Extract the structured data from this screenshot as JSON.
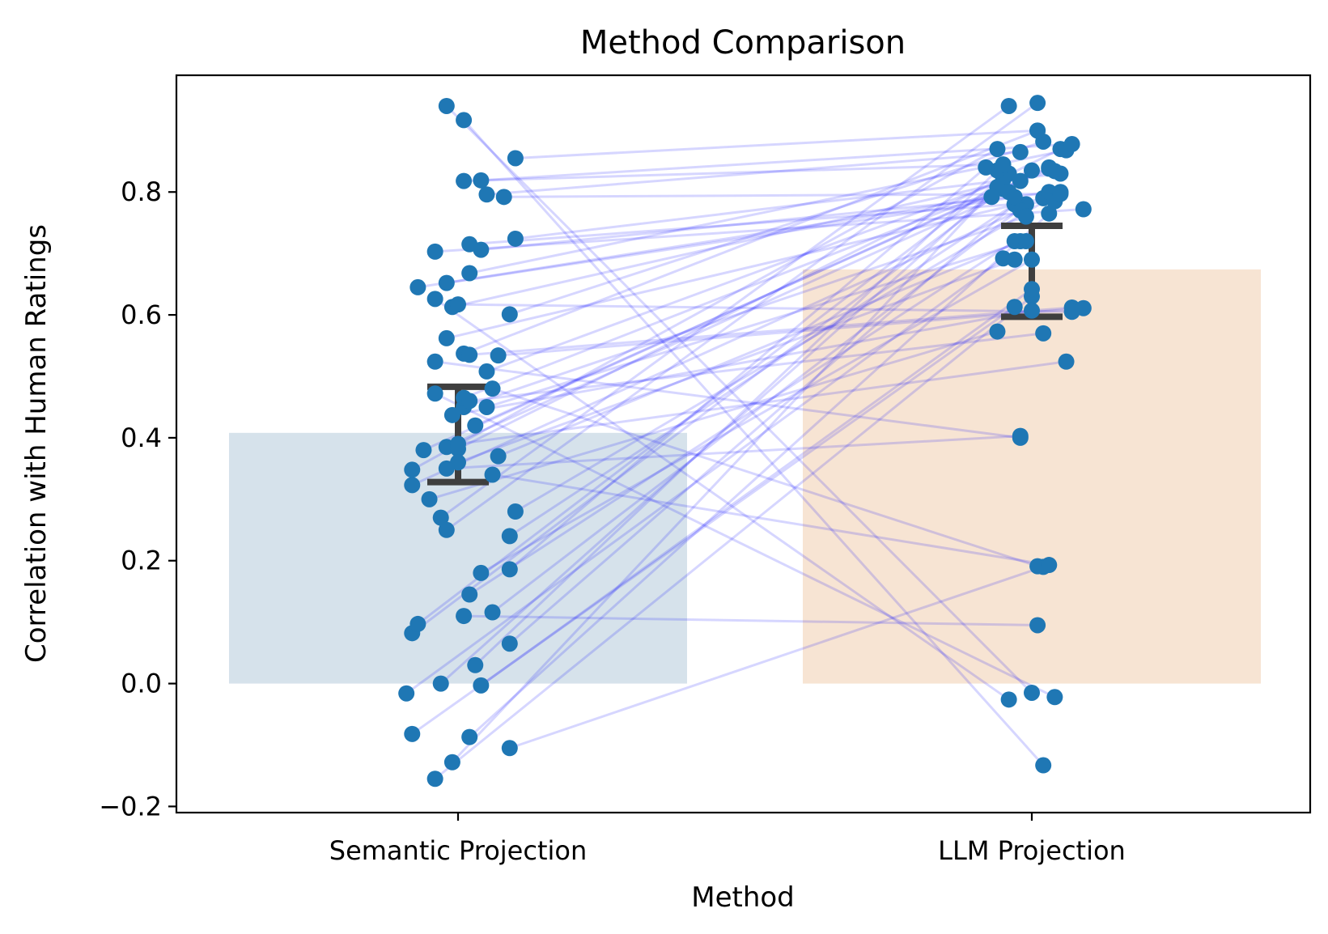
{
  "chart_data": {
    "type": "bar",
    "title": "Method Comparison",
    "xlabel": "Method",
    "ylabel": "Correlation with Human Ratings",
    "categories": [
      "Semantic Projection",
      "LLM Projection"
    ],
    "values": [
      0.408,
      0.674
    ],
    "ylim": [
      -0.21,
      0.99
    ],
    "yticks": [
      -0.2,
      0.0,
      0.2,
      0.4,
      0.6,
      0.8
    ],
    "ytick_labels": [
      "−0.2",
      "0.0",
      "0.2",
      "0.4",
      "0.6",
      "0.8"
    ],
    "error_bars": [
      {
        "low": 0.328,
        "high": 0.483
      },
      {
        "low": 0.597,
        "high": 0.745
      }
    ],
    "grid": false,
    "legend": "none",
    "paired_points": [
      {
        "x": [
          -0.08,
          -0.05
        ],
        "y": [
          0.082,
          0.805
        ]
      },
      {
        "x": [
          -0.07,
          -0.04
        ],
        "y": [
          0.097,
          0.83
        ]
      },
      {
        "x": [
          -0.09,
          -0.05
        ],
        "y": [
          -0.016,
          0.692
        ]
      },
      {
        "x": [
          -0.08,
          -0.03
        ],
        "y": [
          -0.082,
          0.613
        ]
      },
      {
        "x": [
          -0.04,
          0.0
        ],
        "y": [
          -0.155,
          0.63
        ]
      },
      {
        "x": [
          -0.01,
          -0.05
        ],
        "y": [
          -0.128,
          0.82
        ]
      },
      {
        "x": [
          0.02,
          0.03
        ],
        "y": [
          -0.087,
          0.765
        ]
      },
      {
        "x": [
          0.09,
          0.02
        ],
        "y": [
          -0.105,
          0.19
        ]
      },
      {
        "x": [
          -0.03,
          -0.06
        ],
        "y": [
          0.0,
          0.808
        ]
      },
      {
        "x": [
          0.04,
          0.0
        ],
        "y": [
          -0.003,
          0.642
        ]
      },
      {
        "x": [
          0.03,
          -0.06
        ],
        "y": [
          0.03,
          0.835
        ]
      },
      {
        "x": [
          0.09,
          -0.03
        ],
        "y": [
          0.065,
          0.78
        ]
      },
      {
        "x": [
          0.01,
          0.01
        ],
        "y": [
          0.11,
          0.095
        ]
      },
      {
        "x": [
          0.06,
          -0.01
        ],
        "y": [
          0.116,
          0.78
        ]
      },
      {
        "x": [
          0.02,
          -0.03
        ],
        "y": [
          0.145,
          0.72
        ]
      },
      {
        "x": [
          0.04,
          0.0
        ],
        "y": [
          0.18,
          0.69
        ]
      },
      {
        "x": [
          0.09,
          -0.08
        ],
        "y": [
          0.186,
          0.84
        ]
      },
      {
        "x": [
          0.09,
          -0.03
        ],
        "y": [
          0.24,
          0.78
        ]
      },
      {
        "x": [
          0.1,
          0.05
        ],
        "y": [
          0.28,
          0.8
        ]
      },
      {
        "x": [
          0.07,
          -0.02
        ],
        "y": [
          0.37,
          0.72
        ]
      },
      {
        "x": [
          -0.08,
          -0.02
        ],
        "y": [
          0.323,
          0.77
        ]
      },
      {
        "x": [
          -0.08,
          -0.06
        ],
        "y": [
          0.348,
          0.87
        ]
      },
      {
        "x": [
          -0.06,
          0.03
        ],
        "y": [
          0.38,
          0.84
        ]
      },
      {
        "x": [
          -0.02,
          -0.04
        ],
        "y": [
          0.385,
          0.8
        ]
      },
      {
        "x": [
          0.0,
          0.05
        ],
        "y": [
          0.382,
          0.87
        ]
      },
      {
        "x": [
          0.0,
          -0.03
        ],
        "y": [
          0.36,
          0.69
        ]
      },
      {
        "x": [
          0.01,
          -0.01
        ],
        "y": [
          0.45,
          0.76
        ]
      },
      {
        "x": [
          0.01,
          -0.02
        ],
        "y": [
          0.465,
          0.818
        ]
      },
      {
        "x": [
          -0.04,
          0.04
        ],
        "y": [
          0.472,
          -0.022
        ]
      },
      {
        "x": [
          -0.01,
          0.0
        ],
        "y": [
          0.437,
          0.607
        ]
      },
      {
        "x": [
          0.05,
          0.0
        ],
        "y": [
          0.508,
          0.835
        ]
      },
      {
        "x": [
          -0.04,
          -0.02
        ],
        "y": [
          0.524,
          0.4
        ]
      },
      {
        "x": [
          -0.02,
          0.02
        ],
        "y": [
          0.562,
          0.79
        ]
      },
      {
        "x": [
          0.01,
          0.01
        ],
        "y": [
          0.537,
          0.9
        ]
      },
      {
        "x": [
          0.02,
          0.07
        ],
        "y": [
          0.535,
          0.612
        ]
      },
      {
        "x": [
          0.07,
          0.09
        ],
        "y": [
          0.534,
          0.611
        ]
      },
      {
        "x": [
          0.09,
          0.02
        ],
        "y": [
          0.601,
          0.882
        ]
      },
      {
        "x": [
          -0.04,
          -0.04
        ],
        "y": [
          0.626,
          -0.026
        ]
      },
      {
        "x": [
          -0.01,
          0.04
        ],
        "y": [
          0.613,
          0.834
        ]
      },
      {
        "x": [
          -0.07,
          -0.07
        ],
        "y": [
          0.645,
          0.792
        ]
      },
      {
        "x": [
          -0.02,
          0.03
        ],
        "y": [
          0.652,
          0.8
        ]
      },
      {
        "x": [
          0.0,
          0.07
        ],
        "y": [
          0.617,
          0.605
        ]
      },
      {
        "x": [
          -0.04,
          0.09
        ],
        "y": [
          0.703,
          0.772
        ]
      },
      {
        "x": [
          0.02,
          0.06
        ],
        "y": [
          0.668,
          0.868
        ]
      },
      {
        "x": [
          0.02,
          0.04
        ],
        "y": [
          0.715,
          0.785
        ]
      },
      {
        "x": [
          0.04,
          -0.03
        ],
        "y": [
          0.706,
          0.792
        ]
      },
      {
        "x": [
          0.1,
          0.05
        ],
        "y": [
          0.724,
          0.83
        ]
      },
      {
        "x": [
          0.01,
          -0.05
        ],
        "y": [
          0.818,
          0.845
        ]
      },
      {
        "x": [
          0.04,
          0.07
        ],
        "y": [
          0.819,
          0.878
        ]
      },
      {
        "x": [
          0.05,
          -0.02
        ],
        "y": [
          0.796,
          0.865
        ]
      },
      {
        "x": [
          0.08,
          0.05
        ],
        "y": [
          0.792,
          0.797
        ]
      },
      {
        "x": [
          0.1,
          0.01
        ],
        "y": [
          0.855,
          0.9
        ]
      },
      {
        "x": [
          -0.02,
          0.0
        ],
        "y": [
          0.94,
          -0.015
        ]
      },
      {
        "x": [
          0.01,
          0.02
        ],
        "y": [
          0.917,
          -0.133
        ]
      },
      {
        "x": [
          0.02,
          0.02
        ],
        "y": [
          0.46,
          0.57
        ]
      },
      {
        "x": [
          0.06,
          0.01
        ],
        "y": [
          0.48,
          0.191
        ]
      },
      {
        "x": [
          -0.02,
          -0.02
        ],
        "y": [
          0.35,
          0.403
        ]
      },
      {
        "x": [
          0.0,
          0.06
        ],
        "y": [
          0.39,
          0.524
        ]
      },
      {
        "x": [
          -0.05,
          -0.06
        ],
        "y": [
          0.3,
          0.573
        ]
      },
      {
        "x": [
          -0.03,
          -0.04
        ],
        "y": [
          0.27,
          0.94
        ]
      },
      {
        "x": [
          -0.02,
          0.01
        ],
        "y": [
          0.25,
          0.945
        ]
      },
      {
        "x": [
          0.03,
          0.03
        ],
        "y": [
          0.42,
          0.838
        ]
      },
      {
        "x": [
          0.05,
          -0.01
        ],
        "y": [
          0.45,
          0.72
        ]
      },
      {
        "x": [
          0.06,
          0.03
        ],
        "y": [
          0.34,
          0.193
        ]
      }
    ]
  }
}
